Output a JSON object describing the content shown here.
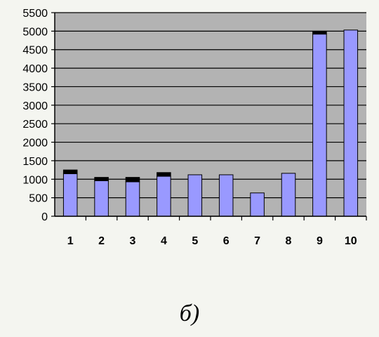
{
  "caption": "б)",
  "colors": {
    "plot_background": "#b3b3b3",
    "bar_fill": "#9999ff",
    "bar_cap": "#000000",
    "gridline": "#000000"
  },
  "chart_data": {
    "type": "bar",
    "stacked": true,
    "categories": [
      "1",
      "2",
      "3",
      "4",
      "5",
      "6",
      "7",
      "8",
      "9",
      "10"
    ],
    "series": [
      {
        "values": [
          1150,
          960,
          930,
          1080,
          1120,
          1120,
          630,
          1160,
          4920,
          5030
        ]
      },
      {
        "values": [
          100,
          90,
          120,
          100,
          0,
          0,
          0,
          0,
          80,
          0
        ]
      }
    ],
    "ylim": [
      0,
      5500
    ],
    "yticks": [
      0,
      500,
      1000,
      1500,
      2000,
      2500,
      3000,
      3500,
      4000,
      4500,
      5000,
      5500
    ],
    "grid": true,
    "legend": "none"
  }
}
